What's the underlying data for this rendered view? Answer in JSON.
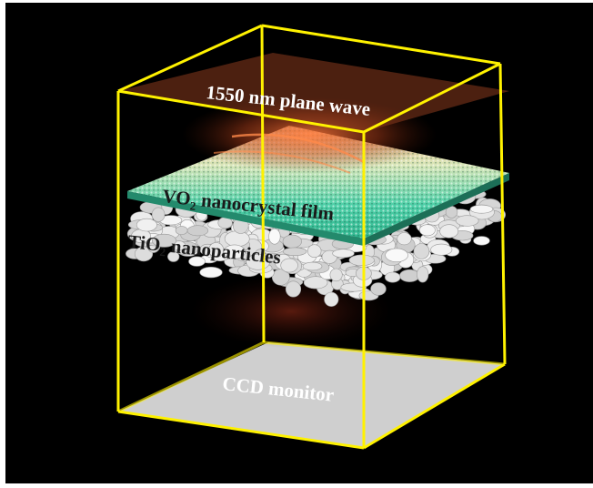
{
  "labels": {
    "plane_wave": "1550 nm plane wave",
    "vo2_prefix": "VO",
    "vo2_subscript": "2",
    "vo2_suffix": " nanocrystal film",
    "tio2_prefix": "TiO",
    "tio2_subscript": "2",
    "tio2_suffix": " nanoparticles",
    "detector": "CCD monitor"
  },
  "colors": {
    "background": "#000000",
    "frame": "#FFF200",
    "plane_wave": "#8a3a1e",
    "vo2_film": "#3fc9a0",
    "tio2_particles": "#e8e8e8",
    "ccd_monitor": "#cfcfcf"
  }
}
